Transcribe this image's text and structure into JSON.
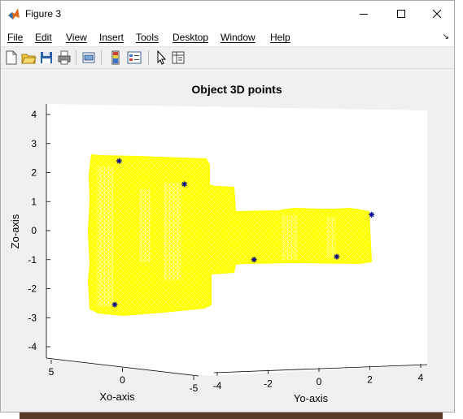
{
  "window": {
    "title": "Figure 3"
  },
  "menu": [
    {
      "label": "File"
    },
    {
      "label": "Edit"
    },
    {
      "label": "View"
    },
    {
      "label": "Insert"
    },
    {
      "label": "Tools"
    },
    {
      "label": "Desktop"
    },
    {
      "label": "Window"
    },
    {
      "label": "Help"
    }
  ],
  "toolbar": {
    "buttons": [
      "new-figure",
      "open-file",
      "save",
      "print",
      "link-plot",
      "insert-colorbar",
      "insert-legend",
      "edit-plot",
      "property-inspector"
    ]
  },
  "colors": {
    "point_cloud": "#ffff00",
    "keypoint_marker": "#00008b",
    "axes_bg": "#ffffff",
    "figure_bg": "#f0f0f0"
  },
  "chart_data": {
    "type": "scatter",
    "title": "Object 3D points",
    "xlabel": "Xo-axis",
    "ylabel": "Yo-axis",
    "zlabel": "Zo-axis",
    "xticks": [
      "5",
      "0",
      "-5"
    ],
    "yticks": [
      "-4",
      "-2",
      "0",
      "2",
      "4"
    ],
    "zticks": [
      "4",
      "3",
      "2",
      "1",
      "0",
      "-1",
      "-2",
      "-3",
      "-4"
    ],
    "zlim": [
      -4.4,
      4.4
    ],
    "ylim": [
      -4.5,
      4.2
    ],
    "grid": false,
    "series": [
      {
        "marker": "*",
        "color": "#00008b",
        "points": [
          {
            "y": -3.9,
            "z": 2.4
          },
          {
            "y": -2.4,
            "z": 1.6
          },
          {
            "y": -0.8,
            "z": -1.0
          },
          {
            "y": 1.1,
            "z": -0.9
          },
          {
            "y": 1.9,
            "z": 0.55
          },
          {
            "y": -4.0,
            "z": -2.55
          }
        ]
      }
    ]
  }
}
